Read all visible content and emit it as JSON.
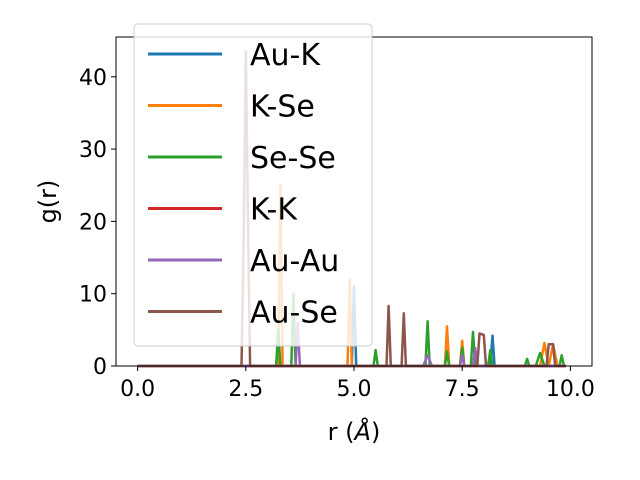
{
  "chart_data": {
    "type": "line",
    "xlabel_text": "r (",
    "xlabel_unit": "Å",
    "xlabel_close": ")",
    "ylabel": "g(r)",
    "xlim": [
      -0.5,
      10.5
    ],
    "ylim": [
      0,
      45.5
    ],
    "xticks": [
      0.0,
      2.5,
      5.0,
      7.5,
      10.0
    ],
    "xtick_labels": [
      "0.0",
      "2.5",
      "5.0",
      "7.5",
      "10.0"
    ],
    "yticks": [
      0,
      10,
      20,
      30,
      40
    ],
    "ytick_labels": [
      "0",
      "10",
      "20",
      "30",
      "40"
    ],
    "grid": false,
    "legend_position": "upper-left",
    "series": [
      {
        "name": "Au-K",
        "color": "#1f77b4",
        "x": [
          0,
          4.95,
          5.0,
          5.05,
          8.15,
          8.2,
          8.25,
          9.9
        ],
        "y": [
          0,
          0,
          11,
          0,
          0,
          4.2,
          0,
          0
        ]
      },
      {
        "name": "K-Se",
        "color": "#ff7f0e",
        "x": [
          0,
          3.25,
          3.3,
          3.35,
          4.85,
          4.9,
          4.95,
          7.1,
          7.15,
          7.2,
          7.45,
          7.5,
          7.55,
          9.3,
          9.4,
          9.5,
          9.6,
          9.7,
          9.8,
          9.9
        ],
        "y": [
          0,
          0,
          25,
          0,
          0,
          12,
          0,
          0,
          5.5,
          0,
          0,
          3.5,
          0,
          0,
          3.2,
          0,
          3.0,
          0,
          0,
          0
        ]
      },
      {
        "name": "Se-Se",
        "color": "#2ca02c",
        "x": [
          0,
          3.2,
          3.25,
          3.3,
          3.55,
          3.6,
          3.65,
          5.45,
          5.5,
          5.55,
          6.65,
          6.7,
          6.75,
          7.1,
          7.15,
          7.2,
          7.45,
          7.5,
          7.55,
          7.7,
          7.75,
          7.8,
          8.1,
          8.15,
          8.2,
          8.95,
          9.0,
          9.05,
          9.2,
          9.3,
          9.4,
          9.75,
          9.8,
          9.85,
          9.9
        ],
        "y": [
          0,
          0,
          5,
          0,
          0,
          10,
          0,
          0,
          2.2,
          0,
          0,
          6.2,
          0,
          0,
          2,
          0,
          0,
          2.5,
          0,
          0,
          4.7,
          0,
          0,
          2.2,
          0,
          0,
          1,
          0,
          0,
          1.8,
          0,
          0,
          1.5,
          0,
          0
        ]
      },
      {
        "name": "K-K",
        "color": "#d62728",
        "x": [
          0,
          9.9
        ],
        "y": [
          0,
          0
        ]
      },
      {
        "name": "Au-Au",
        "color": "#9467bd",
        "x": [
          0,
          3.65,
          3.7,
          3.75,
          6.6,
          6.7,
          6.8,
          7.45,
          7.5,
          7.55,
          7.75,
          7.8,
          7.85,
          9.9
        ],
        "y": [
          0,
          0,
          6,
          0,
          0,
          1.5,
          0,
          0,
          1.5,
          0,
          0,
          2.5,
          0,
          0
        ]
      },
      {
        "name": "Au-Se",
        "color": "#8c564b",
        "x": [
          0,
          2.4,
          2.45,
          2.5,
          2.55,
          2.6,
          5.75,
          5.8,
          5.85,
          6.1,
          6.15,
          6.2,
          7.85,
          7.9,
          8.0,
          8.05,
          9.45,
          9.5,
          9.6,
          9.65,
          9.9
        ],
        "y": [
          0,
          0,
          18,
          43.5,
          20,
          0,
          0,
          8.3,
          0,
          0,
          7.3,
          0,
          0,
          4.5,
          4.3,
          0,
          0,
          3.0,
          3.0,
          0,
          0
        ]
      }
    ]
  }
}
